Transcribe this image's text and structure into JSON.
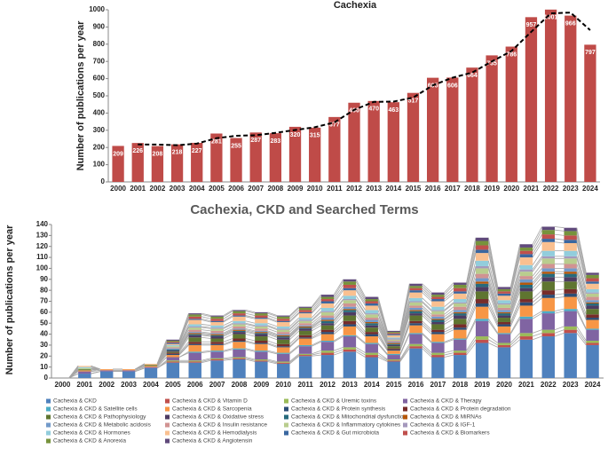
{
  "chart_data": [
    {
      "type": "bar",
      "title": "Cachexia",
      "y_label": "Number of publications per year",
      "categories": [
        "2000",
        "2001",
        "2002",
        "2003",
        "2004",
        "2005",
        "2006",
        "2007",
        "2008",
        "2009",
        "2010",
        "2011",
        "2012",
        "2013",
        "2014",
        "2015",
        "2016",
        "2017",
        "2018",
        "2019",
        "2020",
        "2021",
        "2022",
        "2023",
        "2024"
      ],
      "values": [
        209,
        226,
        208,
        218,
        227,
        281,
        255,
        287,
        283,
        320,
        315,
        377,
        460,
        470,
        463,
        517,
        605,
        606,
        664,
        735,
        786,
        957,
        1001,
        966,
        797
      ],
      "color": "#bf4b48",
      "trendline": {
        "values": [
          null,
          217.5,
          217,
          213,
          222.5,
          254,
          268,
          271,
          285,
          301.5,
          317.5,
          346,
          418.5,
          465,
          466.5,
          490,
          561,
          605.5,
          635,
          699.5,
          760.5,
          871.5,
          979,
          983.5,
          881.5
        ],
        "color": "#000000",
        "dashed": true
      },
      "ylim": [
        0,
        1000
      ],
      "yticks": [
        0,
        100,
        200,
        300,
        400,
        500,
        600,
        700,
        800,
        900,
        1000
      ]
    },
    {
      "type": "stacked_bar",
      "title": "Cachexia, CKD and Searched Terms",
      "y_label": "Number of publications per year",
      "categories": [
        "2000",
        "2001",
        "2002",
        "2003",
        "2004",
        "2005",
        "2006",
        "2007",
        "2008",
        "2009",
        "2010",
        "2011",
        "2012",
        "2013",
        "2014",
        "2015",
        "2016",
        "2017",
        "2018",
        "2019",
        "2020",
        "2021",
        "2022",
        "2023",
        "2024"
      ],
      "series": [
        {
          "name": "Cachexia & CKD",
          "color": "#4f81bd",
          "values": [
            0,
            4,
            6,
            6,
            9,
            14,
            14,
            16,
            17,
            15,
            13,
            20,
            21,
            24,
            19,
            15,
            27,
            19,
            21,
            32,
            28,
            35,
            38,
            41,
            30
          ]
        },
        {
          "name": "Cachexia & CKD & Vitamin D",
          "color": "#c0504d",
          "values": [
            0,
            0,
            0,
            0,
            0,
            1,
            1,
            1,
            1,
            1,
            1,
            1,
            2,
            2,
            2,
            1,
            2,
            2,
            2,
            3,
            2,
            3,
            3,
            3,
            2
          ]
        },
        {
          "name": "Cachexia & CKD & Uremic toxins",
          "color": "#9bbb59",
          "values": [
            0,
            0,
            0,
            0,
            0,
            1,
            1,
            1,
            1,
            1,
            1,
            1,
            2,
            2,
            2,
            1,
            2,
            2,
            2,
            3,
            2,
            3,
            3,
            3,
            2
          ]
        },
        {
          "name": "Cachexia & CKD & Therapy",
          "color": "#8064a2",
          "values": [
            0,
            2,
            1,
            1,
            1,
            3,
            7,
            6,
            7,
            7,
            7,
            7,
            8,
            10,
            8,
            4,
            9,
            9,
            10,
            14,
            8,
            13,
            15,
            14,
            10
          ]
        },
        {
          "name": "Cachexia & CKD & Satellite cells",
          "color": "#4bacc6",
          "values": [
            0,
            0,
            0,
            0,
            0,
            0,
            1,
            1,
            1,
            1,
            1,
            1,
            1,
            1,
            1,
            1,
            1,
            1,
            1,
            2,
            1,
            2,
            2,
            2,
            1
          ]
        },
        {
          "name": "Cachexia & CKD & Sarcopenia",
          "color": "#f79646",
          "values": [
            0,
            1,
            1,
            1,
            1,
            2,
            6,
            5,
            6,
            6,
            5,
            6,
            6,
            8,
            6,
            3,
            7,
            7,
            8,
            11,
            6,
            10,
            12,
            11,
            8
          ]
        },
        {
          "name": "Cachexia & CKD & Protein synthesis",
          "color": "#2c4d75",
          "values": [
            0,
            0,
            0,
            0,
            0,
            1,
            1,
            1,
            1,
            1,
            1,
            1,
            2,
            2,
            2,
            1,
            2,
            2,
            2,
            3,
            2,
            3,
            3,
            3,
            2
          ]
        },
        {
          "name": "Cachexia & CKD & Protein degradation",
          "color": "#772c2a",
          "values": [
            0,
            0,
            0,
            0,
            0,
            1,
            2,
            2,
            2,
            2,
            2,
            2,
            2,
            3,
            2,
            1,
            2,
            2,
            3,
            4,
            2,
            3,
            4,
            4,
            3
          ]
        },
        {
          "name": "Cachexia & CKD & Pathophysiology",
          "color": "#5f7530",
          "values": [
            0,
            1,
            0,
            0,
            1,
            1,
            4,
            3,
            4,
            4,
            4,
            4,
            4,
            5,
            4,
            2,
            5,
            5,
            5,
            7,
            4,
            7,
            8,
            7,
            5
          ]
        },
        {
          "name": "Cachexia & CKD & Oxidative stress",
          "color": "#4d3b62",
          "values": [
            0,
            0,
            0,
            0,
            0,
            1,
            2,
            2,
            2,
            2,
            2,
            2,
            2,
            3,
            2,
            1,
            2,
            2,
            3,
            4,
            2,
            3,
            4,
            4,
            3
          ]
        },
        {
          "name": "Cachexia & CKD & Mitochondrial dysfunction",
          "color": "#276a7c",
          "values": [
            0,
            0,
            0,
            0,
            0,
            1,
            1,
            1,
            1,
            1,
            1,
            1,
            2,
            2,
            2,
            1,
            2,
            2,
            2,
            3,
            2,
            3,
            3,
            3,
            2
          ]
        },
        {
          "name": "Cachexia & CKD & MiRNAs",
          "color": "#b65708",
          "values": [
            0,
            0,
            0,
            0,
            0,
            0,
            1,
            1,
            1,
            1,
            1,
            1,
            1,
            1,
            1,
            1,
            1,
            1,
            1,
            2,
            1,
            2,
            2,
            2,
            1
          ]
        },
        {
          "name": "Cachexia & CKD & Metabolic acidosis",
          "color": "#729aca",
          "values": [
            0,
            0,
            0,
            0,
            0,
            1,
            1,
            1,
            1,
            1,
            1,
            1,
            2,
            2,
            2,
            1,
            2,
            2,
            2,
            3,
            2,
            3,
            3,
            3,
            2
          ]
        },
        {
          "name": "Cachexia & CKD & Insulin resistance",
          "color": "#d19392",
          "values": [
            0,
            0,
            0,
            0,
            0,
            1,
            2,
            2,
            2,
            2,
            2,
            2,
            2,
            3,
            2,
            1,
            2,
            2,
            3,
            4,
            2,
            3,
            4,
            4,
            3
          ]
        },
        {
          "name": "Cachexia & CKD & Inflammatory cytokines",
          "color": "#b9cd8e",
          "values": [
            0,
            1,
            0,
            0,
            0,
            1,
            2,
            2,
            2,
            2,
            2,
            2,
            3,
            3,
            3,
            1,
            3,
            3,
            3,
            5,
            3,
            4,
            5,
            5,
            3
          ]
        },
        {
          "name": "Cachexia & CKD & IGF-1",
          "color": "#a599bd",
          "values": [
            0,
            0,
            0,
            0,
            0,
            0,
            1,
            1,
            1,
            1,
            1,
            1,
            1,
            1,
            1,
            1,
            1,
            1,
            1,
            2,
            1,
            2,
            2,
            2,
            1
          ]
        },
        {
          "name": "Cachexia & CKD & Hormones",
          "color": "#92cddc",
          "values": [
            0,
            1,
            0,
            0,
            0,
            1,
            2,
            2,
            2,
            2,
            2,
            2,
            3,
            3,
            3,
            1,
            3,
            3,
            3,
            5,
            3,
            4,
            5,
            5,
            3
          ]
        },
        {
          "name": "Cachexia & CKD & Hemodialysis",
          "color": "#fac090",
          "values": [
            0,
            1,
            0,
            0,
            1,
            1,
            4,
            3,
            4,
            4,
            4,
            4,
            4,
            5,
            4,
            2,
            5,
            5,
            5,
            7,
            4,
            7,
            8,
            7,
            5
          ]
        },
        {
          "name": "Cachexia & CKD & Gut microbiota",
          "color": "#3a67a0",
          "values": [
            0,
            0,
            0,
            0,
            0,
            1,
            1,
            1,
            1,
            1,
            1,
            1,
            2,
            2,
            2,
            1,
            2,
            2,
            2,
            3,
            2,
            3,
            3,
            3,
            2
          ]
        },
        {
          "name": "Cachexia & CKD & Biomarkers",
          "color": "#c0504d",
          "values": [
            0,
            0,
            0,
            0,
            0,
            1,
            2,
            2,
            2,
            2,
            2,
            2,
            2,
            3,
            2,
            1,
            2,
            2,
            3,
            4,
            2,
            3,
            4,
            4,
            3
          ]
        },
        {
          "name": "Cachexia & CKD & Anorexia",
          "color": "#77933c",
          "values": [
            0,
            0,
            0,
            0,
            0,
            1,
            2,
            2,
            2,
            2,
            2,
            2,
            2,
            3,
            2,
            1,
            2,
            2,
            3,
            4,
            2,
            3,
            4,
            4,
            3
          ]
        },
        {
          "name": "Cachexia & CKD & Angiotensin",
          "color": "#604a7b",
          "values": [
            0,
            0,
            0,
            0,
            0,
            1,
            1,
            1,
            1,
            1,
            1,
            1,
            2,
            2,
            2,
            1,
            2,
            2,
            2,
            3,
            2,
            3,
            3,
            3,
            2
          ]
        }
      ],
      "ylim": [
        0,
        140
      ],
      "yticks": [
        0,
        10,
        20,
        30,
        40,
        50,
        60,
        70,
        80,
        90,
        100,
        110,
        120,
        130,
        140
      ]
    }
  ]
}
